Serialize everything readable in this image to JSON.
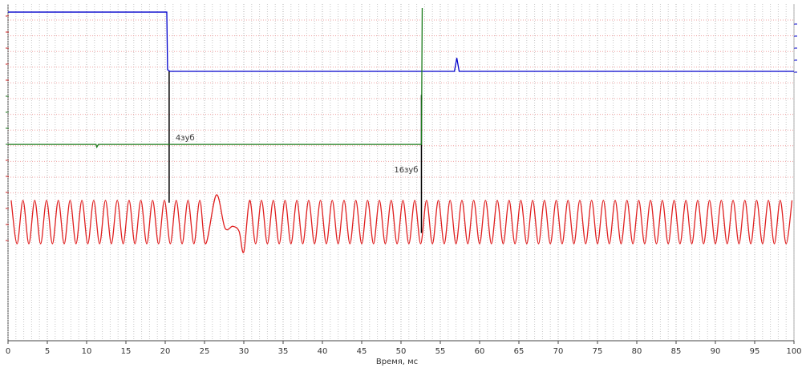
{
  "chart_data": {
    "type": "line",
    "xlabel": "Время, мс",
    "xlim": [
      0,
      100
    ],
    "xticks": [
      0,
      5,
      10,
      15,
      20,
      25,
      30,
      35,
      40,
      45,
      50,
      55,
      60,
      65,
      70,
      75,
      80,
      85,
      90,
      95,
      100
    ],
    "xgrid_step": 1,
    "ylim": [
      0,
      100
    ],
    "grid": true,
    "series": [
      {
        "color": "#0000cc",
        "x": [
          0,
          20.2,
          20.3,
          20.6,
          56.8,
          57.1,
          57.4,
          100
        ],
        "values": [
          97.6,
          97.6,
          80.5,
          80,
          80,
          84,
          80,
          80
        ]
      },
      {
        "color": "#1a7a1a",
        "x": [
          0,
          11.2,
          11.3,
          11.5,
          52.6,
          52.7
        ],
        "values": [
          58.3,
          58.3,
          57.5,
          58.3,
          58.3,
          98.8
        ]
      },
      {
        "color": "#e02020",
        "x": [
          0.4,
          1.15,
          1.9,
          2.65,
          3.4,
          4.15,
          4.9,
          5.65,
          6.4,
          7.15,
          7.9,
          8.65,
          9.4,
          10.15,
          10.9,
          11.65,
          12.4,
          13.15,
          13.9,
          14.65,
          15.4,
          16.15,
          16.9,
          17.65,
          18.4,
          19.15,
          19.9,
          20.65,
          21.4,
          22.15,
          22.9,
          23.65,
          24.4,
          25.15,
          26.5,
          27.6,
          28.6,
          29.4,
          30.0,
          30.75,
          31.5,
          32.25,
          33,
          33.75,
          34.5,
          35.25,
          36,
          36.75,
          37.5,
          38.25,
          39,
          39.75,
          40.5,
          41.25,
          42,
          42.75,
          43.5,
          44.25,
          45,
          45.75,
          46.5,
          47.25,
          48,
          48.75,
          49.5,
          50.25,
          51,
          51.75,
          52.5,
          53.25,
          54,
          54.75,
          55.5,
          56.25,
          57,
          57.75,
          58.5,
          59.25,
          60,
          60.75,
          61.5,
          62.25,
          63,
          63.75,
          64.5,
          65.25,
          66,
          66.75,
          67.5,
          68.25,
          69,
          69.75,
          70.5,
          71.25,
          72,
          72.75,
          73.5,
          74.25,
          75,
          75.75,
          76.5,
          77.25,
          78,
          78.75,
          79.5,
          80.25,
          81,
          81.75,
          82.5,
          83.25,
          84,
          84.75,
          85.5,
          86.25,
          87,
          87.75,
          88.5,
          89.25,
          90,
          90.75,
          91.5,
          92.25,
          93,
          93.75,
          94.5,
          95.25,
          96,
          96.75,
          97.5,
          98.25,
          99,
          99.75
        ],
        "values": [
          41.7,
          28.8,
          41.7,
          28.8,
          41.7,
          28.8,
          41.7,
          28.8,
          41.7,
          28.8,
          41.7,
          28.8,
          41.7,
          28.8,
          41.7,
          28.8,
          41.7,
          28.8,
          41.7,
          28.8,
          41.7,
          28.8,
          41.7,
          28.8,
          41.7,
          28.8,
          41.7,
          28.8,
          41.7,
          28.8,
          41.7,
          28.8,
          41.7,
          28.8,
          43.3,
          33.5,
          34,
          32.5,
          26.4,
          41.7,
          28.8,
          41.7,
          28.8,
          41.7,
          28.8,
          41.7,
          28.8,
          41.7,
          28.8,
          41.7,
          28.8,
          41.7,
          28.8,
          41.7,
          28.8,
          41.7,
          28.8,
          41.7,
          28.8,
          41.7,
          28.8,
          41.7,
          28.8,
          41.7,
          28.8,
          41.7,
          28.8,
          41.7,
          28.8,
          41.7,
          28.8,
          41.7,
          28.8,
          41.7,
          28.8,
          41.7,
          28.8,
          41.7,
          28.8,
          41.7,
          28.8,
          41.7,
          28.8,
          41.7,
          28.8,
          41.7,
          28.8,
          41.7,
          28.8,
          41.7,
          28.8,
          41.7,
          28.8,
          41.7,
          28.8,
          41.7,
          28.8,
          41.7,
          28.8,
          41.7,
          28.8,
          41.7,
          28.8,
          41.7,
          28.8,
          41.7,
          28.8,
          41.7,
          28.8,
          41.7,
          28.8,
          41.7,
          28.8,
          41.7,
          28.8,
          41.7,
          28.8,
          41.7,
          28.8,
          41.7,
          28.8,
          41.7,
          28.8,
          41.7,
          28.8,
          41.7,
          28.8,
          41.7,
          28.8,
          41.7,
          28.8,
          41.7
        ]
      }
    ],
    "markers": [
      {
        "x": 20.5,
        "y": [
          80,
          41
        ],
        "label": "4зуб"
      },
      {
        "x": 52.6,
        "y": [
          73,
          32
        ],
        "label": "16зуб"
      }
    ]
  }
}
